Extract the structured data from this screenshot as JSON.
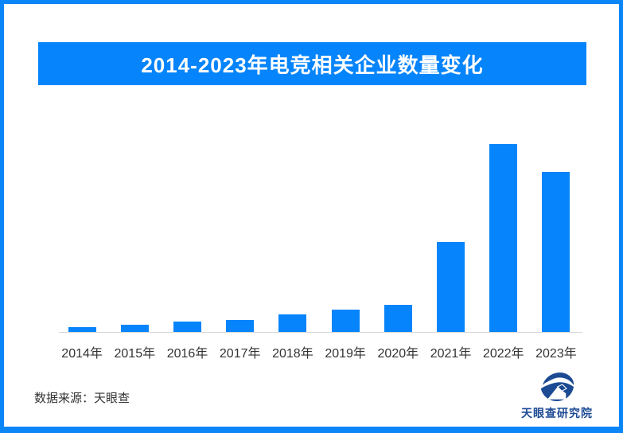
{
  "page": {
    "background": "#ffffff",
    "frame_border_color": "#0b86f8"
  },
  "header": {
    "title": "2014-2023年电竞相关企业数量变化",
    "banner_color": "#0584fb",
    "text_color": "#ffffff"
  },
  "chart_data": {
    "type": "bar",
    "title": "2014-2023年电竞相关企业数量变化",
    "categories": [
      "2014年",
      "2015年",
      "2016年",
      "2017年",
      "2018年",
      "2019年",
      "2020年",
      "2021年",
      "2022年",
      "2023年"
    ],
    "values": [
      2.5,
      3.8,
      5.5,
      6.3,
      9.3,
      11.9,
      14.4,
      47.9,
      100,
      85.2
    ],
    "values_unit": "relative bar height, tallest bar (2022) = 100; no y-axis scale shown in chart",
    "xlabel": "",
    "ylabel": "",
    "ylim": [
      0,
      100
    ],
    "grid": false,
    "legend": false,
    "bar_color": "#0584fb",
    "axis_line_color": "#d5d5d5",
    "tick_label_color": "#333333"
  },
  "footer": {
    "source_label": "数据来源：天眼查"
  },
  "logo": {
    "icon": "tianyancha-eye-logo",
    "name": "天眼查研究院",
    "color": "#1c4a93"
  }
}
